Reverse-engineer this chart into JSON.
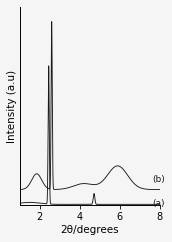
{
  "title": "",
  "xlabel": "2θ/degrees",
  "ylabel": "Intensity (a.u)",
  "xlim": [
    1.0,
    8.0
  ],
  "label_a": "(a)",
  "label_b": "(b)",
  "background_color": "#f5f5f5",
  "line_color": "#1a1a1a",
  "tick_label_size": 7,
  "axis_label_size": 7.5
}
